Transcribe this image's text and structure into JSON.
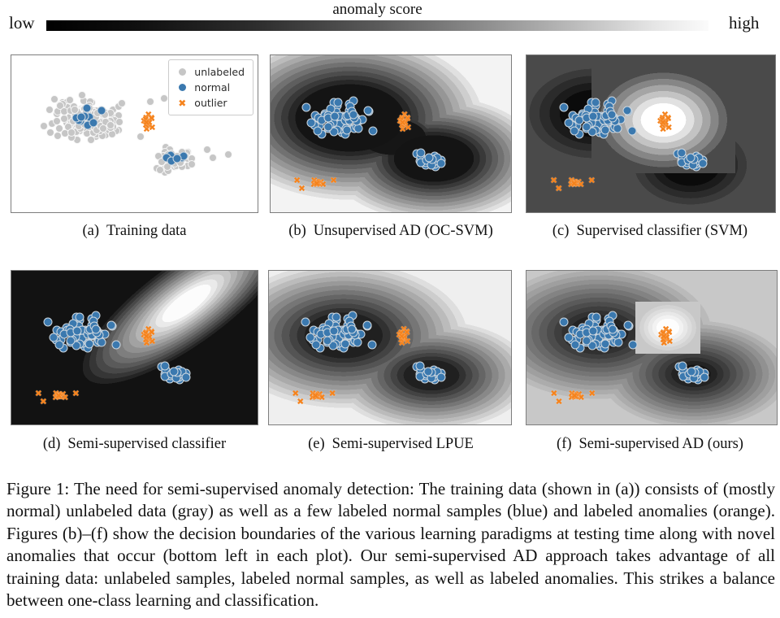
{
  "colorbar": {
    "title": "anomaly score",
    "low_label": "low",
    "high_label": "high",
    "gradient_left_color": "#000000",
    "gradient_right_color": "#fbfbfb"
  },
  "legend": {
    "items": [
      {
        "label": "unlabeled",
        "marker": "circle",
        "color": "#c6c6c6"
      },
      {
        "label": "normal",
        "marker": "circle",
        "color": "#3b79af"
      },
      {
        "label": "outlier",
        "marker": "cross",
        "color": "#f5831d"
      }
    ]
  },
  "figure_caption": {
    "text": "Figure 1: The need for semi-supervised anomaly detection: The training data (shown in (a)) consists of (mostly normal) unlabeled data (gray) as well as a few labeled normal samples (blue) and labeled anomalies (orange). Figures (b)–(f) show the decision boundaries of the various learning paradigms at testing time along with novel anomalies that occur (bottom left in each plot). Our semi-supervised AD approach takes advantage of all training data: unlabeled samples, labeled normal samples, as well as labeled anomalies. This strikes a balance between one-class learning and classification."
  },
  "chart_data": {
    "type": "scatter",
    "glyphs": {
      "outlier_cross": "✖"
    },
    "marker_colors": {
      "gray": {
        "fill": "#c6c6c6",
        "edge": "rgba(255,255,255,0.85)",
        "size": 10
      },
      "blue": {
        "fill": "#3b79af",
        "edge": "rgba(232,232,232,0.85)",
        "size": 11
      },
      "orange": {
        "fill": "#f5831d",
        "edge": "#ffffff",
        "size": 11
      }
    },
    "clusters": {
      "gray_left": {
        "cx": 0.295,
        "cy": 0.4,
        "ax": 0.205,
        "ay": 0.175,
        "n": 160,
        "seed": 7
      },
      "gray_right": {
        "cx": 0.665,
        "cy": 0.665,
        "ax": 0.115,
        "ay": 0.085,
        "n": 48,
        "seed": 13
      },
      "gray_singles": [
        [
          0.795,
          0.6
        ],
        [
          0.82,
          0.655
        ],
        [
          0.565,
          0.295
        ],
        [
          0.62,
          0.275
        ],
        [
          0.525,
          0.52
        ],
        [
          0.88,
          0.63
        ]
      ],
      "blue_left_a": {
        "cx": 0.305,
        "cy": 0.405,
        "ax": 0.105,
        "ay": 0.09,
        "n": 10,
        "seed": 21
      },
      "blue_right_a": {
        "cx": 0.665,
        "cy": 0.66,
        "ax": 0.05,
        "ay": 0.042,
        "n": 7,
        "seed": 29
      },
      "blue_left": {
        "cx": 0.3,
        "cy": 0.4,
        "ax": 0.175,
        "ay": 0.145,
        "n": 72,
        "seed": 42
      },
      "blue_right": {
        "cx": 0.67,
        "cy": 0.67,
        "ax": 0.105,
        "ay": 0.075,
        "n": 23,
        "seed": 51
      },
      "orange_train": {
        "cx": 0.555,
        "cy": 0.425,
        "ax": 0.028,
        "ay": 0.055,
        "n": 13,
        "seed": 63
      },
      "orange_novel": {
        "cx": 0.2,
        "cy": 0.815,
        "ax": 0.03,
        "ay": 0.028,
        "n": 11,
        "seed": 75
      },
      "orange_novel_singles": [
        [
          0.11,
          0.8
        ],
        [
          0.13,
          0.852
        ],
        [
          0.262,
          0.8
        ]
      ]
    },
    "panels": [
      {
        "id": "a",
        "caption_prefix": "(a)",
        "caption": "Training data",
        "bg": "#ffffff",
        "has_legend": true,
        "blobs": [],
        "groups": [
          {
            "type": "dot",
            "color": "gray",
            "clusters": [
              "gray_left",
              "gray_right"
            ],
            "singles": "gray_singles"
          },
          {
            "type": "dot",
            "color": "blue",
            "clusters": [
              "blue_left_a",
              "blue_right_a"
            ]
          },
          {
            "type": "cross",
            "color": "orange",
            "clusters": [
              "orange_train"
            ]
          }
        ]
      },
      {
        "id": "b",
        "caption_prefix": "(b)",
        "caption": "Unsupervised AD (OC-SVM)",
        "bg": "#f3f3f3",
        "blobs": [
          {
            "cx": 0.33,
            "cy": 0.4,
            "rx": 0.58,
            "ry": 0.55,
            "core": "#141414",
            "outer": "#f3f3f3",
            "bands": 13,
            "flat": 0.34,
            "blend": "darken"
          },
          {
            "cx": 0.68,
            "cy": 0.66,
            "rx": 0.47,
            "ry": 0.42,
            "core": "#141414",
            "outer": "#f3f3f3",
            "bands": 13,
            "flat": 0.3,
            "blend": "darken"
          },
          {
            "cx": 0.51,
            "cy": 0.52,
            "rx": 0.26,
            "ry": 0.22,
            "core": "#161616",
            "outer": "#f3f3f3",
            "bands": 8,
            "flat": 0.45,
            "blend": "darken"
          }
        ],
        "groups": [
          {
            "type": "dot",
            "color": "blue",
            "clusters": [
              "blue_left",
              "blue_right"
            ]
          },
          {
            "type": "cross",
            "color": "orange",
            "clusters": [
              "orange_train",
              "orange_novel"
            ],
            "singles": "orange_novel_singles"
          }
        ]
      },
      {
        "id": "c",
        "caption_prefix": "(c)",
        "caption": "Supervised classifier (SVM)",
        "bg": "#4a4a4a",
        "blobs": [
          {
            "cx": 0.27,
            "cy": 0.37,
            "rx": 0.3,
            "ry": 0.33,
            "core": "#0b0b0b",
            "outer": "#4a4a4a",
            "bands": 5,
            "flat": 0.32,
            "blend": "darken"
          },
          {
            "cx": 0.66,
            "cy": 0.7,
            "rx": 0.26,
            "ry": 0.29,
            "core": "#0b0b0b",
            "outer": "#4a4a4a",
            "bands": 5,
            "flat": 0.32,
            "blend": "darken"
          },
          {
            "cx": 0.55,
            "cy": 0.41,
            "rx": 0.29,
            "ry": 0.34,
            "core": "#ffffff",
            "outer": "#4a4a4a",
            "bands": 7,
            "flat": 0.2,
            "blend": "lighten"
          }
        ],
        "groups": [
          {
            "type": "dot",
            "color": "blue",
            "clusters": [
              "blue_left",
              "blue_right"
            ]
          },
          {
            "type": "cross",
            "color": "orange",
            "clusters": [
              "orange_train",
              "orange_novel"
            ],
            "singles": "orange_novel_singles"
          }
        ]
      },
      {
        "id": "d",
        "caption_prefix": "(d)",
        "caption": "Semi-supervised classifier",
        "bg": "#121212",
        "blobs": [
          {
            "cx": 0.71,
            "cy": 0.21,
            "rx": 0.54,
            "ry": 0.28,
            "rot": -36,
            "core": "#fcfcfc",
            "outer": "#121212",
            "bands": 14,
            "flat": 0.16
          }
        ],
        "groups": [
          {
            "type": "dot",
            "color": "blue",
            "clusters": [
              "blue_left",
              "blue_right"
            ]
          },
          {
            "type": "cross",
            "color": "orange",
            "clusters": [
              "orange_train",
              "orange_novel"
            ],
            "singles": "orange_novel_singles"
          }
        ]
      },
      {
        "id": "e",
        "caption_prefix": "(e)",
        "caption": "Semi-supervised LPUE",
        "bg": "#efefef",
        "blobs": [
          {
            "cx": 0.31,
            "cy": 0.42,
            "rx": 0.54,
            "ry": 0.5,
            "core": "#202020",
            "outer": "#efefef",
            "bands": 13,
            "flat": 0.24,
            "blend": "darken"
          },
          {
            "cx": 0.67,
            "cy": 0.68,
            "rx": 0.44,
            "ry": 0.38,
            "core": "#202020",
            "outer": "#efefef",
            "bands": 13,
            "flat": 0.2,
            "blend": "darken"
          }
        ],
        "groups": [
          {
            "type": "dot",
            "color": "blue",
            "clusters": [
              "blue_left",
              "blue_right"
            ]
          },
          {
            "type": "cross",
            "color": "orange",
            "clusters": [
              "orange_train",
              "orange_novel"
            ],
            "singles": "orange_novel_singles"
          }
        ]
      },
      {
        "id": "f",
        "caption_prefix": "(f)",
        "caption": "Semi-supervised AD (ours)",
        "bg": "#c8c8c8",
        "blobs": [
          {
            "cx": 0.29,
            "cy": 0.4,
            "rx": 0.48,
            "ry": 0.46,
            "core": "#151515",
            "outer": "#c8c8c8",
            "bands": 14,
            "flat": 0.12,
            "blend": "darken"
          },
          {
            "cx": 0.67,
            "cy": 0.67,
            "rx": 0.4,
            "ry": 0.37,
            "core": "#151515",
            "outer": "#c8c8c8",
            "bands": 14,
            "flat": 0.1,
            "blend": "darken"
          },
          {
            "cx": 0.565,
            "cy": 0.37,
            "rx": 0.13,
            "ry": 0.17,
            "core": "#fdfdfd",
            "outer": "#c8c8c8",
            "bands": 6,
            "flat": 0.22,
            "blend": "lighten"
          }
        ],
        "groups": [
          {
            "type": "dot",
            "color": "blue",
            "clusters": [
              "blue_left",
              "blue_right"
            ]
          },
          {
            "type": "cross",
            "color": "orange",
            "clusters": [
              "orange_train",
              "orange_novel"
            ],
            "singles": "orange_novel_singles"
          }
        ]
      }
    ]
  }
}
